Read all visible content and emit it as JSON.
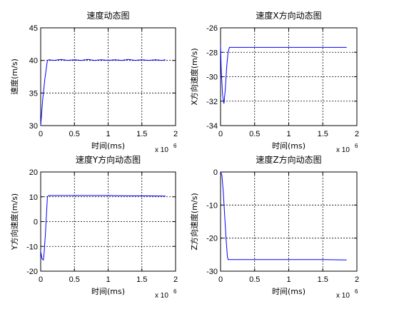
{
  "chart_data": [
    {
      "type": "line",
      "title": "速度动态图",
      "xlabel": "时间(ms)",
      "ylabel": "速度(m/s)",
      "x_multiplier": "x 10",
      "x_multiplier_exp": "6",
      "xlim": [
        0,
        2
      ],
      "ylim": [
        30,
        45
      ],
      "xticks": [
        "0",
        "0.5",
        "1",
        "1.5",
        "2"
      ],
      "yticks": [
        "30",
        "35",
        "40",
        "45"
      ],
      "grid": true,
      "color": "#0000ff",
      "series": [
        {
          "x": [
            0,
            0.03,
            0.06,
            0.09,
            0.1,
            0.12,
            0.2,
            0.3,
            0.4,
            0.5,
            0.6,
            0.7,
            0.8,
            0.9,
            1.0,
            1.1,
            1.2,
            1.3,
            1.4,
            1.5,
            1.6,
            1.7,
            1.8,
            1.85
          ],
          "y": [
            30,
            34,
            37,
            39.3,
            40,
            40.1,
            40.0,
            40.15,
            40.0,
            40.1,
            40.0,
            40.15,
            40.0,
            40.1,
            40.0,
            40.1,
            40.0,
            40.15,
            40.0,
            40.1,
            40.0,
            40.1,
            40.0,
            40.1
          ]
        }
      ]
    },
    {
      "type": "line",
      "title": "速度X方向动态图",
      "xlabel": "时间(ms)",
      "ylabel": "X方向速度(m/s)",
      "x_multiplier": "x 10",
      "x_multiplier_exp": "6",
      "xlim": [
        0,
        2
      ],
      "ylim": [
        -34,
        -26
      ],
      "xticks": [
        "0",
        "0.5",
        "1",
        "1.5",
        "2"
      ],
      "yticks": [
        "-26",
        "-28",
        "-30",
        "-32",
        "-34"
      ],
      "ytick_values": [
        -26,
        -28,
        -30,
        -32,
        -34
      ],
      "grid": true,
      "color": "#0000ff",
      "series": [
        {
          "x": [
            0,
            0.01,
            0.03,
            0.05,
            0.07,
            0.09,
            0.11,
            0.13,
            0.5,
            1.0,
            1.5,
            1.85
          ],
          "y": [
            -27.4,
            -29.5,
            -31.5,
            -32.2,
            -31.0,
            -29.2,
            -28.0,
            -27.6,
            -27.6,
            -27.6,
            -27.6,
            -27.6
          ]
        }
      ]
    },
    {
      "type": "line",
      "title": "速度Y方向动态图",
      "xlabel": "时间(ms)",
      "ylabel": "Y方向速度(m/s)",
      "x_multiplier": "x 10",
      "x_multiplier_exp": "6",
      "xlim": [
        0,
        2
      ],
      "ylim": [
        -20,
        20
      ],
      "xticks": [
        "0",
        "0.5",
        "1",
        "1.5",
        "2"
      ],
      "yticks": [
        "20",
        "10",
        "0",
        "-10",
        "-20"
      ],
      "ytick_values": [
        20,
        10,
        0,
        -10,
        -20
      ],
      "grid": true,
      "color": "#0000ff",
      "series": [
        {
          "x": [
            0,
            0.02,
            0.04,
            0.05,
            0.07,
            0.09,
            0.1,
            0.12,
            0.5,
            1.0,
            1.3,
            1.5,
            1.85
          ],
          "y": [
            -12,
            -15,
            -15.5,
            -13,
            -5,
            5,
            10,
            10.5,
            10.5,
            10.5,
            10.4,
            10.4,
            10.3
          ]
        }
      ]
    },
    {
      "type": "line",
      "title": "速度Z方向动态图",
      "xlabel": "时间(ms)",
      "ylabel": "Z方向速度(m/s)",
      "x_multiplier": "x 10",
      "x_multiplier_exp": "6",
      "xlim": [
        0,
        2
      ],
      "ylim": [
        -30,
        0
      ],
      "xticks": [
        "0",
        "0.5",
        "1",
        "1.5",
        "2"
      ],
      "yticks": [
        "0",
        "-10",
        "-20",
        "-30"
      ],
      "ytick_values": [
        0,
        -10,
        -20,
        -30
      ],
      "grid": true,
      "color": "#0000ff",
      "series": [
        {
          "x": [
            0,
            0.02,
            0.04,
            0.06,
            0.08,
            0.1,
            0.11,
            0.5,
            1.0,
            1.5,
            1.85
          ],
          "y": [
            0.1,
            -1,
            -6,
            -13,
            -20,
            -25.5,
            -26.5,
            -26.5,
            -26.5,
            -26.5,
            -26.6
          ]
        }
      ]
    }
  ]
}
